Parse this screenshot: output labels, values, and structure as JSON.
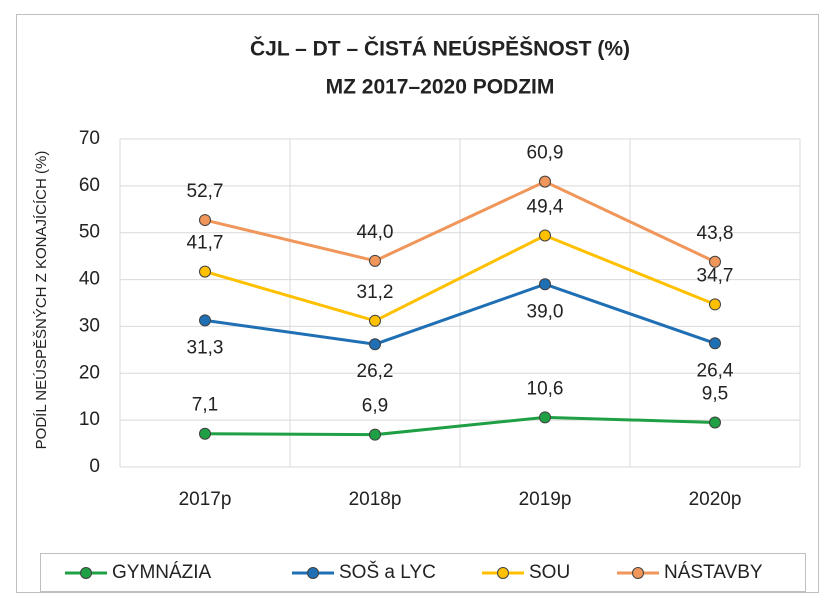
{
  "chart_data": {
    "type": "line",
    "title": "ČJL – DT – ČISTÁ NEÚSPĚŠNOST (%)",
    "subtitle": "MZ 2017–2020 PODZIM",
    "y_label": "PODÍL NEÚSPĚŠNÝCH Z KONAJÍCÍCH (%)",
    "categories": [
      "2017p",
      "2018p",
      "2019p",
      "2020p"
    ],
    "series": [
      {
        "name": "GYMNÁZIA",
        "color": "#1fa045",
        "values": [
          7.1,
          6.9,
          10.6,
          9.5
        ],
        "value_labels": [
          "7,1",
          "6,9",
          "10,6",
          "9,5"
        ]
      },
      {
        "name": "SOŠ a LYC",
        "color": "#1f6fb4",
        "values": [
          31.3,
          26.2,
          39.0,
          26.4
        ],
        "value_labels": [
          "31,3",
          "26,2",
          "39,0",
          "26,4"
        ]
      },
      {
        "name": "SOU",
        "color": "#ffc000",
        "values": [
          41.7,
          31.2,
          49.4,
          34.7
        ],
        "value_labels": [
          "41,7",
          "31,2",
          "49,4",
          "34,7"
        ]
      },
      {
        "name": "NÁSTAVBY",
        "color": "#f0965a",
        "values": [
          52.7,
          44.0,
          60.9,
          43.8
        ],
        "value_labels": [
          "52,7",
          "44,0",
          "60,9",
          "43,8"
        ]
      }
    ],
    "ylim": [
      0,
      70
    ],
    "yticks": [
      0,
      10,
      20,
      30,
      40,
      50,
      60,
      70
    ],
    "grid": true,
    "legend": "bottom"
  }
}
